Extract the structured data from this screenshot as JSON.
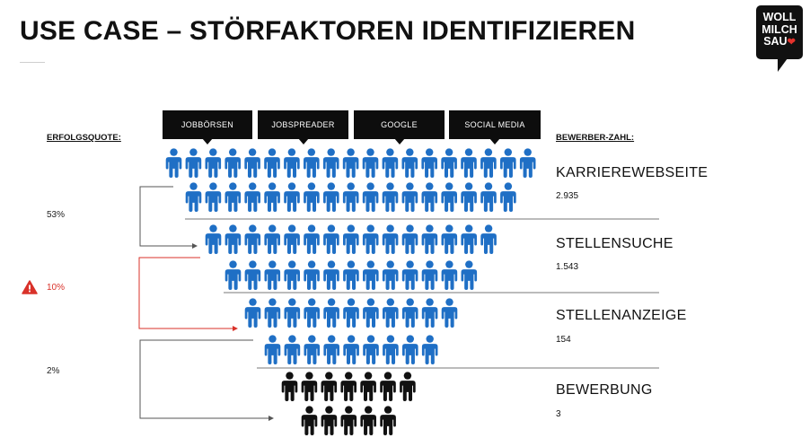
{
  "title": "USE CASE – STÖRFAKTOREN IDENTIFIZIEREN",
  "logo": {
    "line1": "WOLL",
    "line2": "MILCH",
    "line3": "SAU"
  },
  "channels": [
    "JOBBÖRSEN",
    "JOBSPREADER",
    "GOOGLE",
    "SOCIAL MEDIA"
  ],
  "left_heading": "ERFOLGSQUOTE:",
  "right_heading": "BEWERBER-ZAHL:",
  "rates": [
    {
      "value": "53%",
      "highlight": false
    },
    {
      "value": "10%",
      "highlight": true
    },
    {
      "value": "2%",
      "highlight": false
    }
  ],
  "stages": [
    {
      "label": "KARRIEREWEBSEITE",
      "count": "2.935"
    },
    {
      "label": "STELLENSUCHE",
      "count": "1.543"
    },
    {
      "label": "STELLENANZEIGE",
      "count": "154"
    },
    {
      "label": "BEWERBUNG",
      "count": "3"
    }
  ],
  "colors": {
    "people": "#1f6fc5",
    "people_final": "#111111",
    "highlight": "#d9322a",
    "connector": "#555555"
  },
  "icons": {
    "person": "person-icon",
    "warning": "warning-triangle-icon"
  }
}
